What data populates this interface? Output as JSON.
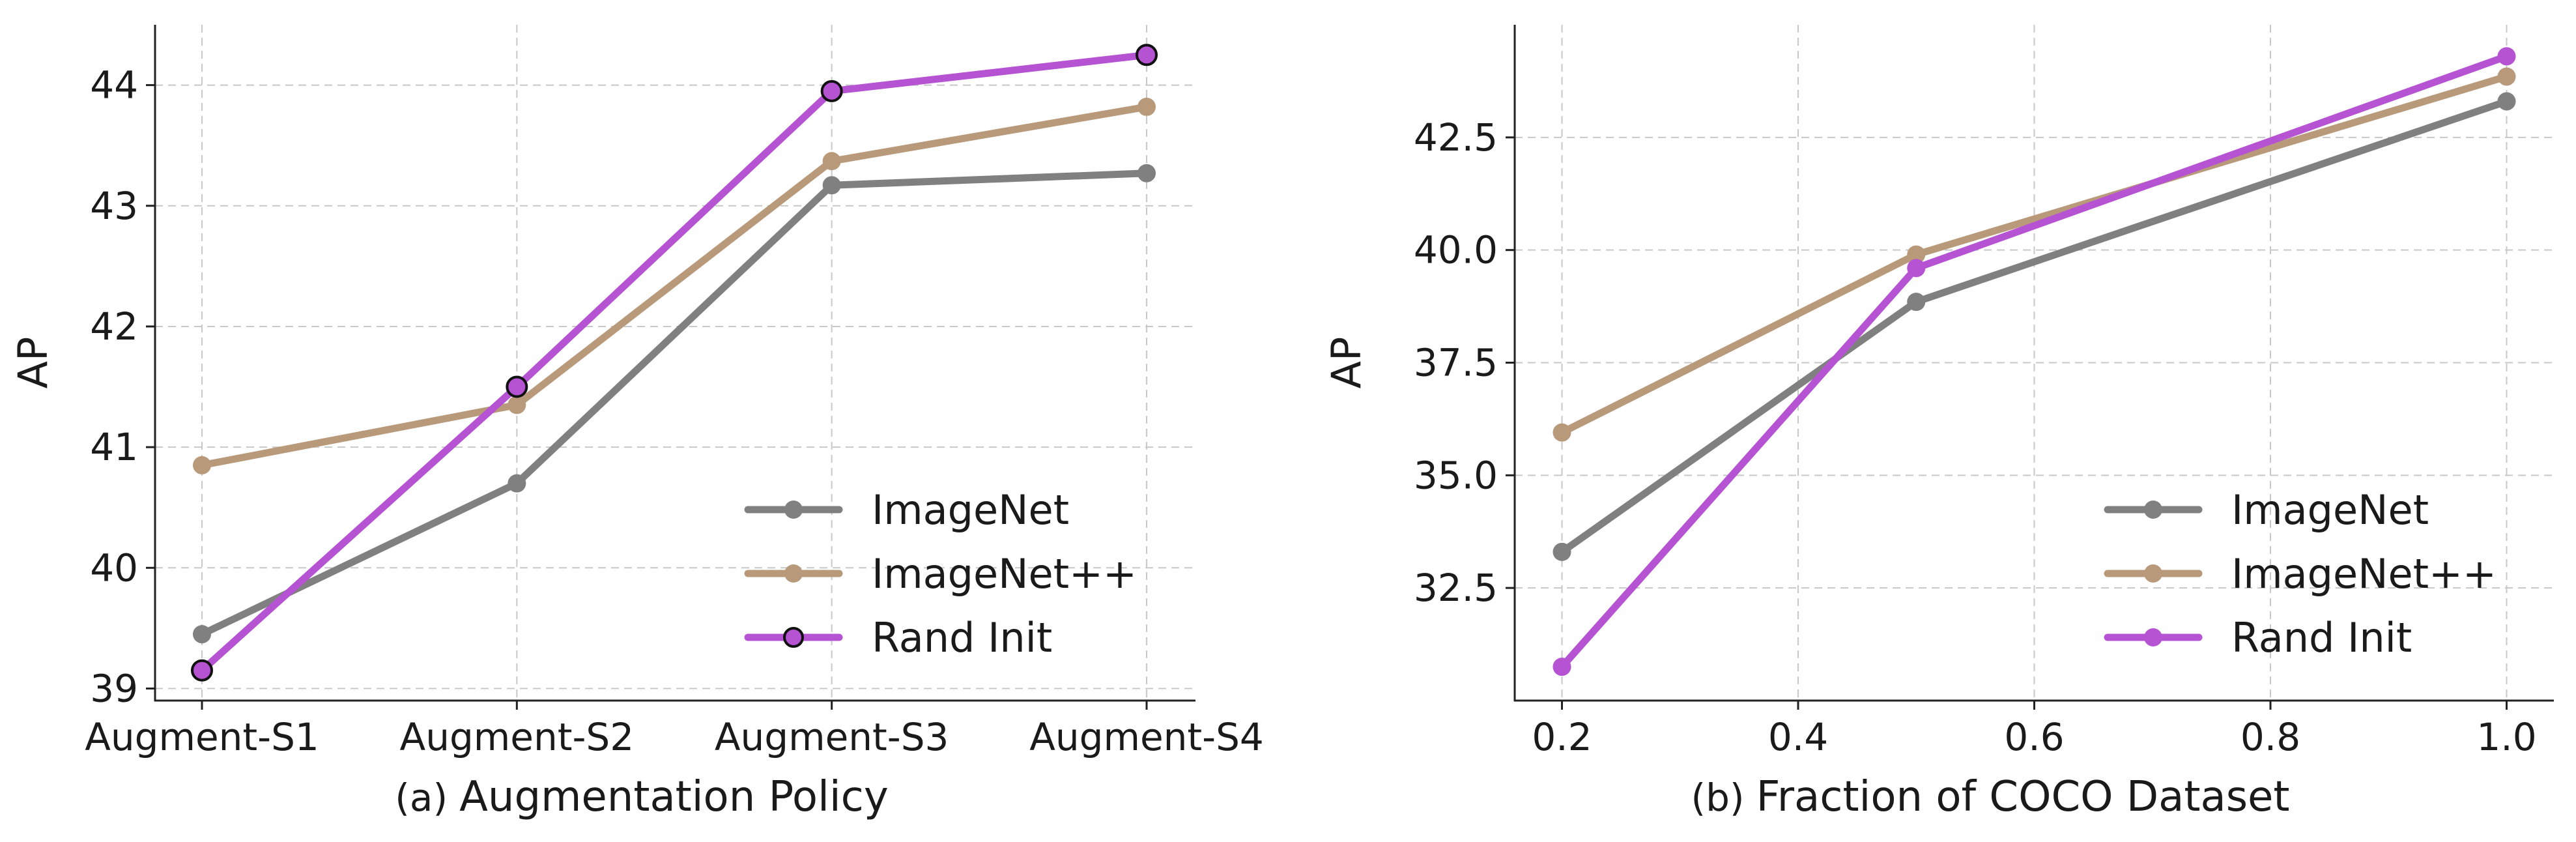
{
  "chart_data": [
    {
      "type": "line",
      "panel": "a",
      "caption_prefix": "(a)",
      "caption": "Augmentation Policy",
      "xlabel": "",
      "ylabel": "AP",
      "categories": [
        "Augment-S1",
        "Augment-S2",
        "Augment-S3",
        "Augment-S4"
      ],
      "ylim": [
        38.9,
        44.5
      ],
      "yticks": [
        39,
        40,
        41,
        42,
        43,
        44
      ],
      "grid": true,
      "legend_position": "lower-right",
      "legend_marker_edge": true,
      "series": [
        {
          "name": "ImageNet",
          "color": "#808080",
          "values": [
            39.45,
            40.7,
            43.17,
            43.27
          ],
          "marker_edge": false
        },
        {
          "name": "ImageNet++",
          "color": "#b89a7b",
          "values": [
            40.85,
            41.35,
            43.37,
            43.82
          ],
          "marker_edge": false
        },
        {
          "name": "Rand Init",
          "color": "#b553d3",
          "values": [
            39.15,
            41.5,
            43.95,
            44.25
          ],
          "marker_edge": true
        }
      ]
    },
    {
      "type": "line",
      "panel": "b",
      "caption_prefix": "(b)",
      "caption": "Fraction of COCO Dataset",
      "xlabel": "",
      "ylabel": "AP",
      "x": [
        0.2,
        0.5,
        1.0
      ],
      "xlim": [
        0.16,
        1.04
      ],
      "xticks": [
        "0.2",
        "0.4",
        "0.6",
        "0.8",
        "1.0"
      ],
      "ylim": [
        30.0,
        45.0
      ],
      "yticks": [
        "32.5",
        "35.0",
        "37.5",
        "40.0",
        "42.5"
      ],
      "grid": true,
      "legend_position": "lower-right",
      "legend_marker_edge": false,
      "series": [
        {
          "name": "ImageNet",
          "color": "#808080",
          "values": [
            33.3,
            38.85,
            43.3
          ],
          "marker_edge": false
        },
        {
          "name": "ImageNet++",
          "color": "#b89a7b",
          "values": [
            35.95,
            39.9,
            43.85
          ],
          "marker_edge": false
        },
        {
          "name": "Rand Init",
          "color": "#b553d3",
          "values": [
            30.75,
            39.6,
            44.3
          ],
          "marker_edge": false
        }
      ]
    }
  ]
}
